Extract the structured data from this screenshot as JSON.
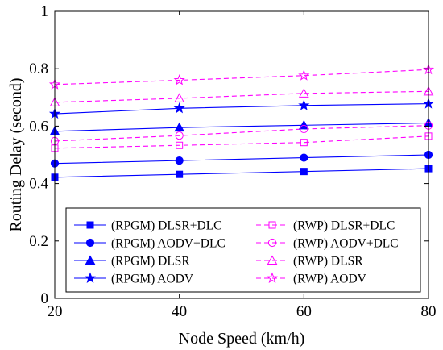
{
  "chart_data": {
    "type": "line",
    "xlabel": "Node Speed (km/h)",
    "ylabel": "Routing Delay (second)",
    "x": [
      20,
      40,
      60,
      80
    ],
    "xlim": [
      20,
      80
    ],
    "ylim": [
      0,
      1
    ],
    "xticks": [
      "20",
      "40",
      "60",
      "80"
    ],
    "yticks": [
      "0",
      "0.2",
      "0.4",
      "0.6",
      "0.8",
      "1"
    ],
    "grid": false,
    "legend_position": "bottom-center, two columns",
    "series": [
      {
        "name": "(RPGM) DLSR+DLC",
        "values": [
          0.422,
          0.432,
          0.442,
          0.452
        ],
        "color": "#0000ff",
        "dash": "solid",
        "marker": "square-filled"
      },
      {
        "name": "(RPGM) AODV+DLC",
        "values": [
          0.47,
          0.48,
          0.49,
          0.5
        ],
        "color": "#0000ff",
        "dash": "solid",
        "marker": "circle-filled"
      },
      {
        "name": "(RPGM) DLSR",
        "values": [
          0.582,
          0.595,
          0.603,
          0.611
        ],
        "color": "#0000ff",
        "dash": "solid",
        "marker": "triangle-filled"
      },
      {
        "name": "(RPGM) AODV",
        "values": [
          0.643,
          0.662,
          0.672,
          0.678
        ],
        "color": "#0000ff",
        "dash": "solid",
        "marker": "star-filled"
      },
      {
        "name": "(RWP) DLSR+DLC",
        "values": [
          0.523,
          0.533,
          0.543,
          0.565
        ],
        "color": "#ff00ff",
        "dash": "dashed",
        "marker": "square-open"
      },
      {
        "name": "(RWP) AODV+DLC",
        "values": [
          0.548,
          0.567,
          0.59,
          0.602
        ],
        "color": "#ff00ff",
        "dash": "dashed",
        "marker": "circle-open"
      },
      {
        "name": "(RWP) DLSR",
        "values": [
          0.683,
          0.697,
          0.714,
          0.721
        ],
        "color": "#ff00ff",
        "dash": "dashed",
        "marker": "triangle-open"
      },
      {
        "name": "(RWP) AODV",
        "values": [
          0.745,
          0.76,
          0.776,
          0.797
        ],
        "color": "#ff00ff",
        "dash": "dashed",
        "marker": "star-open"
      }
    ]
  }
}
